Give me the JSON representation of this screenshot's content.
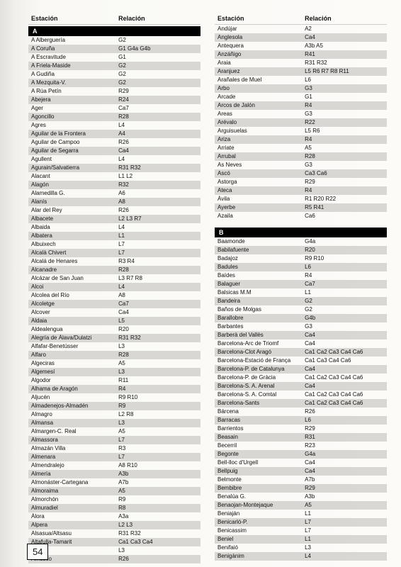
{
  "headers": {
    "estacion": "Estación",
    "relacion": "Relación"
  },
  "pageNumber": "54",
  "sections": {
    "A": "A",
    "B": "B"
  },
  "left": [
    {
      "e": "A Alberguería",
      "r": "G2"
    },
    {
      "e": "A Coruña",
      "r": "G1 G4a G4b"
    },
    {
      "e": "A Escravitude",
      "r": "G1"
    },
    {
      "e": "A Friela-Maside",
      "r": "G2"
    },
    {
      "e": "A Gudiña",
      "r": "G2"
    },
    {
      "e": "A Mezquita-V.",
      "r": "G2"
    },
    {
      "e": "A Rúa Petín",
      "r": "R29"
    },
    {
      "e": "Abejera",
      "r": "R24"
    },
    {
      "e": "Ager",
      "r": "Ca7"
    },
    {
      "e": "Agoncillo",
      "r": "R28"
    },
    {
      "e": "Agres",
      "r": "L4"
    },
    {
      "e": "Aguilar de la Frontera",
      "r": "A4"
    },
    {
      "e": "Aguilar de Campoo",
      "r": "R26"
    },
    {
      "e": "Aguilar de Segarra",
      "r": "Ca4"
    },
    {
      "e": "Agullent",
      "r": "L4"
    },
    {
      "e": "Agurain/Salvatierra",
      "r": "R31 R32"
    },
    {
      "e": "Alacant",
      "r": "L1 L2"
    },
    {
      "e": "Alagón",
      "r": "R32"
    },
    {
      "e": "Alamedilla G.",
      "r": "A6"
    },
    {
      "e": "Alanís",
      "r": "A8"
    },
    {
      "e": "Alar del Rey",
      "r": "R26"
    },
    {
      "e": "Albacete",
      "r": "L2 L3 R7"
    },
    {
      "e": "Albaida",
      "r": "L4"
    },
    {
      "e": "Albatera",
      "r": "L1"
    },
    {
      "e": "Albuixech",
      "r": "L7"
    },
    {
      "e": "Alcalà Chivert",
      "r": "L7"
    },
    {
      "e": "Alcalá de Henares",
      "r": "R3 R4"
    },
    {
      "e": "Alcanadre",
      "r": "R28"
    },
    {
      "e": "Alcázar de San Juan",
      "r": "L3 R7 R8"
    },
    {
      "e": "Alcoi",
      "r": "L4"
    },
    {
      "e": "Alcolea del Río",
      "r": "A8"
    },
    {
      "e": "Alcoletge",
      "r": "Ca7"
    },
    {
      "e": "Alcover",
      "r": "Ca4"
    },
    {
      "e": "Aldaia",
      "r": "L5"
    },
    {
      "e": "Aldealengua",
      "r": "R20"
    },
    {
      "e": "Alegría de Álava/Dulatzi",
      "r": "R31 R32"
    },
    {
      "e": "Alfafar-Benetússer",
      "r": "L3"
    },
    {
      "e": "Alfaro",
      "r": "R28"
    },
    {
      "e": "Algeciras",
      "r": "A5"
    },
    {
      "e": "Algemesí",
      "r": "L3"
    },
    {
      "e": "Algodor",
      "r": "R11"
    },
    {
      "e": "Alhama de Aragón",
      "r": "R4"
    },
    {
      "e": "Aljucén",
      "r": "R9 R10"
    },
    {
      "e": "Almadenejos-Almadén",
      "r": "R9"
    },
    {
      "e": "Almagro",
      "r": "L2 R8"
    },
    {
      "e": "Almansa",
      "r": "L3"
    },
    {
      "e": "Almargen-C. Real",
      "r": "A5"
    },
    {
      "e": "Almassora",
      "r": "L7"
    },
    {
      "e": "Almazán Villa",
      "r": "R3"
    },
    {
      "e": "Almenara",
      "r": "L7"
    },
    {
      "e": "Almendralejo",
      "r": "A8 R10"
    },
    {
      "e": "Almería",
      "r": "A3b"
    },
    {
      "e": "Almonáster-Cartegana",
      "r": "A7b"
    },
    {
      "e": "Almoraima",
      "r": "A5"
    },
    {
      "e": "Almorchón",
      "r": "R9"
    },
    {
      "e": "Almuradiel",
      "r": "R8"
    },
    {
      "e": "Álora",
      "r": "A3a"
    },
    {
      "e": "Alpera",
      "r": "L2 L3"
    },
    {
      "e": "Alsasua/Altsasu",
      "r": "R31 R32"
    },
    {
      "e": "Altafulla-Tamarit",
      "r": "Ca1 Ca3 Ca4"
    },
    {
      "e": "Alzira",
      "r": "L3"
    },
    {
      "e": "Amusco",
      "r": "R26"
    }
  ],
  "rightA": [
    {
      "e": "Andújar",
      "r": "A2"
    },
    {
      "e": "Anglesola",
      "r": "Ca4"
    },
    {
      "e": "Antequera",
      "r": "A3b A5"
    },
    {
      "e": "Anzáñigo",
      "r": "R41"
    },
    {
      "e": "Araia",
      "r": "R31 R32"
    },
    {
      "e": "Aranjuez",
      "r": "L5 R6 R7 R8 R11"
    },
    {
      "e": "Arañales de Muel",
      "r": "L6"
    },
    {
      "e": "Arbo",
      "r": "G3"
    },
    {
      "e": "Arcade",
      "r": "G1"
    },
    {
      "e": "Arcos de Jalón",
      "r": "R4"
    },
    {
      "e": "Areas",
      "r": "G3"
    },
    {
      "e": "Arévalo",
      "r": "R22"
    },
    {
      "e": "Arguisuelas",
      "r": "L5 R6"
    },
    {
      "e": "Ariza",
      "r": "R4"
    },
    {
      "e": "Arriate",
      "r": "A5"
    },
    {
      "e": "Arrubal",
      "r": "R28"
    },
    {
      "e": "As Neves",
      "r": "G3"
    },
    {
      "e": "Ascó",
      "r": "Ca3 Ca6"
    },
    {
      "e": "Astorga",
      "r": "R29"
    },
    {
      "e": "Ateca",
      "r": "R4"
    },
    {
      "e": "Ávila",
      "r": "R1 R20 R22"
    },
    {
      "e": "Ayerbe",
      "r": "R5 R41"
    },
    {
      "e": "Azaila",
      "r": "Ca6"
    }
  ],
  "rightB": [
    {
      "e": "Baamonde",
      "r": "G4a"
    },
    {
      "e": "Babilafuente",
      "r": "R20"
    },
    {
      "e": "Badajoz",
      "r": "R9 R10"
    },
    {
      "e": "Badules",
      "r": "L6"
    },
    {
      "e": "Baídes",
      "r": "R4"
    },
    {
      "e": "Balaguer",
      "r": "Ca7"
    },
    {
      "e": "Balsicas M.M",
      "r": "L1"
    },
    {
      "e": "Bandeira",
      "r": "G2"
    },
    {
      "e": "Baños de Molgas",
      "r": "G2"
    },
    {
      "e": "Barallobre",
      "r": "G4b"
    },
    {
      "e": "Barbantes",
      "r": "G3"
    },
    {
      "e": "Barberà del Vallès",
      "r": "Ca4"
    },
    {
      "e": "Barcelona-Arc de Triomf",
      "r": "Ca4"
    },
    {
      "e": "Barcelona-Clot Aragó",
      "r": "Ca1 Ca2 Ca3 Ca4 Ca6"
    },
    {
      "e": "Barcelona-Estació de França",
      "r": "Ca1 Ca3 Ca4 Ca6"
    },
    {
      "e": "Barcelona-P. de Catalunya",
      "r": "Ca4"
    },
    {
      "e": "Barcelona-P. de Gràcia",
      "r": "Ca1 Ca2 Ca3 Ca4 Ca6"
    },
    {
      "e": "Barcelona-S. A. Arenal",
      "r": "Ca4"
    },
    {
      "e": "Barcelona-S. A. Comtal",
      "r": "Ca1 Ca2 Ca3 Ca4 Ca6"
    },
    {
      "e": "Barcelona-Sants",
      "r": "Ca1 Ca2 Ca3 Ca4 Ca6"
    },
    {
      "e": "Bárcena",
      "r": "R26"
    },
    {
      "e": "Barracas",
      "r": "L6"
    },
    {
      "e": "Barrientos",
      "r": "R29"
    },
    {
      "e": "Beasain",
      "r": "R31"
    },
    {
      "e": "Becerril",
      "r": "R23"
    },
    {
      "e": "Begonte",
      "r": "G4a"
    },
    {
      "e": "Bell-lloc d'Urgell",
      "r": "Ca4"
    },
    {
      "e": "Bellpuig",
      "r": "Ca4"
    },
    {
      "e": "Belmonte",
      "r": "A7b"
    },
    {
      "e": "Bembibre",
      "r": "R29"
    },
    {
      "e": "Benalúa G.",
      "r": "A3b"
    },
    {
      "e": "Benaojan-Montejaque",
      "r": "A5"
    },
    {
      "e": "Beniaján",
      "r": "L1"
    },
    {
      "e": "Benicarló-P.",
      "r": "L7"
    },
    {
      "e": "Benicassim",
      "r": "L7"
    },
    {
      "e": "Beniel",
      "r": "L1"
    },
    {
      "e": "Benifaió",
      "r": "L3"
    },
    {
      "e": "Benigànim",
      "r": "L4"
    }
  ]
}
